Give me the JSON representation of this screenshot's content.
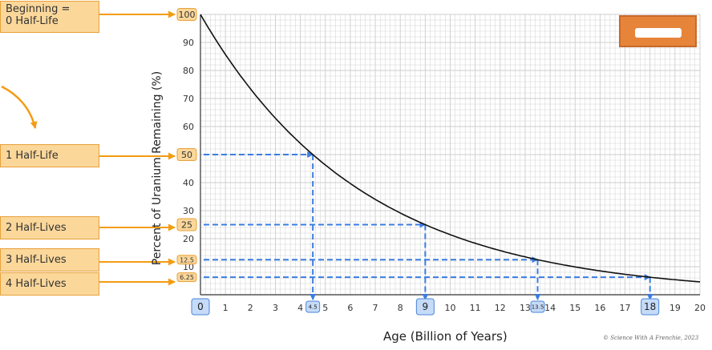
{
  "callouts": {
    "beginning": "Beginning =\n0 Half-Life",
    "one": "1 Half-Life",
    "two": "2 Half-Lives",
    "three": "3 Half-Lives",
    "four": "4 Half-Lives"
  },
  "credit": "© Science With A Frenchie, 2023",
  "colors": {
    "curve": "#111111",
    "dash": "#3b7de0",
    "arrow_orange": "#f39c12",
    "box_fill": "#fbd79a",
    "box_border": "#e8a13a",
    "xbox_fill": "#c5dbf7",
    "xbox_border": "#4a86d8",
    "grid": "#cccccc"
  },
  "chart_data": {
    "type": "line",
    "xlabel": "Age  (Billion of Years)",
    "ylabel": "Percent of Uranium Remaining (%)",
    "xlim": [
      0,
      20
    ],
    "ylim": [
      0,
      100
    ],
    "x_ticks": [
      "0",
      "1",
      "2",
      "3",
      "4",
      "5",
      "6",
      "7",
      "8",
      "9",
      "10",
      "11",
      "12",
      "13",
      "14",
      "15",
      "16",
      "17",
      "18",
      "19",
      "20"
    ],
    "y_ticks": [
      "10",
      "20",
      "30",
      "40",
      "50",
      "60",
      "70",
      "80",
      "90"
    ],
    "grid": true,
    "half_life": 4.5,
    "series": [
      {
        "x": [
          0,
          1,
          2,
          3,
          4,
          4.5,
          5,
          6,
          7,
          8,
          9,
          10,
          11,
          12,
          13,
          13.5,
          14,
          15,
          16,
          17,
          18,
          19,
          20
        ],
        "y": [
          100,
          85.7,
          73.5,
          63.0,
          54.0,
          50,
          46.3,
          39.7,
          34.0,
          29.2,
          25,
          21.4,
          18.4,
          15.7,
          13.5,
          12.5,
          11.6,
          9.9,
          8.5,
          7.3,
          6.25,
          5.4,
          4.6
        ]
      }
    ],
    "annotations": [
      {
        "x": 0,
        "y": 100,
        "x_label": "0",
        "y_label": "100"
      },
      {
        "x": 4.5,
        "y": 50,
        "x_label": "4.5",
        "y_label": "50"
      },
      {
        "x": 9,
        "y": 25,
        "x_label": "9",
        "y_label": "25"
      },
      {
        "x": 13.5,
        "y": 12.5,
        "x_label": "13.5",
        "y_label": "12.5"
      },
      {
        "x": 18,
        "y": 6.25,
        "x_label": "18",
        "y_label": "6.25"
      }
    ]
  }
}
